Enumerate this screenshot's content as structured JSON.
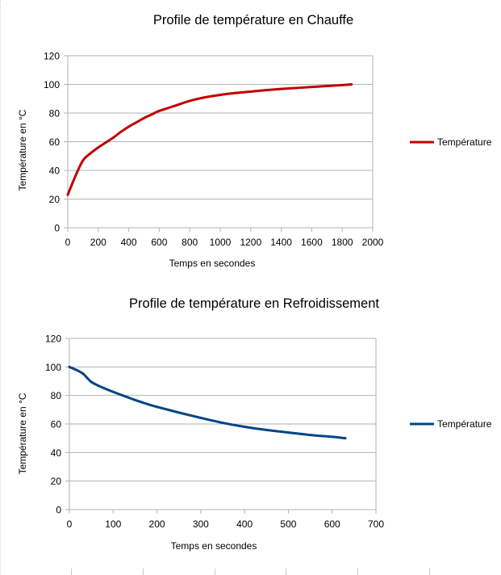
{
  "chart_data": [
    {
      "type": "line",
      "title": "Profile de température en Chauffe",
      "xlabel": "Temps en secondes",
      "ylabel": "Température en °C",
      "xlim": [
        0,
        2000
      ],
      "ylim": [
        0,
        120
      ],
      "x_ticks": [
        "0",
        "200",
        "400",
        "600",
        "800",
        "1000",
        "1200",
        "1400",
        "1600",
        "1800",
        "2000"
      ],
      "y_ticks": [
        "0",
        "20",
        "40",
        "60",
        "80",
        "100",
        "120"
      ],
      "grid": "horizontal",
      "legend_position": "right",
      "series": [
        {
          "name": "Température",
          "color": "#c00000",
          "x": [
            0,
            50,
            100,
            150,
            200,
            250,
            300,
            350,
            400,
            450,
            500,
            550,
            600,
            700,
            800,
            900,
            1000,
            1100,
            1200,
            1300,
            1400,
            1500,
            1600,
            1700,
            1800,
            1860
          ],
          "y": [
            23,
            36,
            47,
            52,
            56,
            59.5,
            63,
            67,
            70.5,
            73.5,
            76.5,
            79,
            81.5,
            85,
            88.5,
            91,
            92.7,
            94,
            95,
            96,
            96.8,
            97.5,
            98.2,
            98.9,
            99.5,
            100
          ]
        }
      ]
    },
    {
      "type": "line",
      "title": "Profile de température en Refroidissement",
      "xlabel": "Temps en secondes",
      "ylabel": "Température en °C",
      "xlim": [
        0,
        700
      ],
      "ylim": [
        0,
        120
      ],
      "x_ticks": [
        "0",
        "100",
        "200",
        "300",
        "400",
        "500",
        "600",
        "700"
      ],
      "y_ticks": [
        "0",
        "20",
        "40",
        "60",
        "80",
        "100",
        "120"
      ],
      "grid": "horizontal",
      "legend_position": "right",
      "series": [
        {
          "name": "Température",
          "color": "#004586",
          "x": [
            0,
            15,
            30,
            40,
            50,
            65,
            80,
            100,
            120,
            150,
            180,
            200,
            250,
            300,
            350,
            400,
            450,
            500,
            550,
            600,
            630
          ],
          "y": [
            100,
            98,
            95.5,
            92.5,
            89.5,
            87,
            85,
            82.5,
            80.2,
            76.8,
            73.8,
            72,
            68,
            64.3,
            60.8,
            58,
            55.8,
            54,
            52.3,
            51,
            50
          ]
        }
      ]
    }
  ]
}
